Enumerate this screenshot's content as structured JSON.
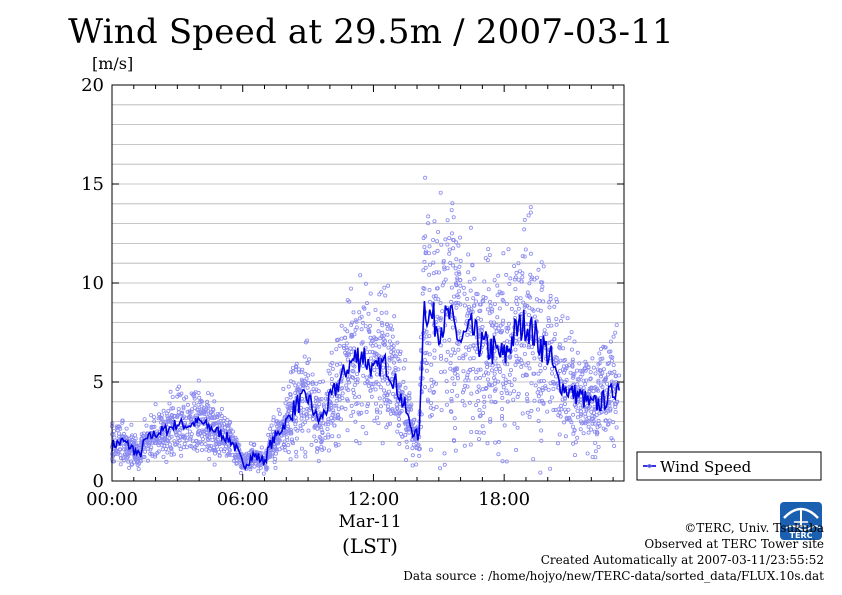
{
  "chart_data": {
    "type": "scatter",
    "title": "Wind Speed at 29.5m / 2007-03-11",
    "ylabel": "[m/s]",
    "xlabel_date": "Mar-11",
    "xlabel_tz": "(LST)",
    "xlim": [
      0,
      23.5
    ],
    "ylim": [
      0,
      20
    ],
    "yticks": [
      0,
      5,
      10,
      15,
      20
    ],
    "xticks": [
      {
        "value": 0,
        "label": "00:00"
      },
      {
        "value": 6,
        "label": "06:00"
      },
      {
        "value": 12,
        "label": "12:00"
      },
      {
        "value": 18,
        "label": "18:00"
      }
    ],
    "grid": true,
    "legend": {
      "placement": "right",
      "label": "Wind Speed"
    },
    "colors": {
      "scatter": "#8a8af0",
      "line": "#0000e0"
    },
    "series": [
      {
        "name": "Wind Speed",
        "x": [
          0.0,
          0.5,
          1.0,
          1.25,
          1.5,
          2.0,
          2.5,
          3.0,
          3.5,
          4.0,
          4.5,
          5.0,
          5.5,
          5.75,
          6.0,
          6.5,
          7.0,
          7.25,
          7.5,
          8.0,
          8.5,
          9.0,
          9.5,
          10.0,
          10.5,
          11.0,
          11.5,
          12.0,
          12.5,
          13.0,
          13.5,
          13.8,
          14.1,
          14.3,
          14.5,
          15.0,
          15.5,
          16.0,
          16.5,
          17.0,
          17.5,
          18.0,
          18.5,
          19.0,
          19.5,
          20.0,
          20.5,
          21.0,
          21.5,
          22.0,
          22.5,
          23.0,
          23.3
        ],
        "y": [
          1.8,
          2.0,
          1.6,
          1.2,
          2.0,
          2.4,
          2.6,
          2.9,
          2.8,
          3.0,
          2.7,
          2.4,
          2.0,
          1.5,
          0.8,
          1.3,
          1.0,
          1.8,
          2.2,
          3.0,
          3.9,
          4.2,
          3.0,
          4.0,
          5.2,
          6.0,
          6.5,
          5.5,
          6.0,
          5.0,
          3.5,
          2.5,
          2.2,
          9.0,
          8.5,
          7.8,
          8.3,
          7.0,
          7.6,
          6.8,
          6.6,
          6.2,
          7.5,
          8.0,
          7.2,
          6.5,
          5.0,
          4.5,
          4.3,
          3.8,
          4.0,
          4.5,
          5.0
        ]
      }
    ]
  },
  "footer": {
    "copyright": "©TERC, Univ. Tsukuba",
    "site": "Observed at TERC Tower site",
    "created": "Created Automatically at 2007-03-11/23:55:52",
    "source": "Data source : /home/hojyo/new/TERC-data/sorted_data/FLUX.10s.dat"
  },
  "logo": {
    "text": "TERC",
    "color": "#1a5fb0"
  }
}
